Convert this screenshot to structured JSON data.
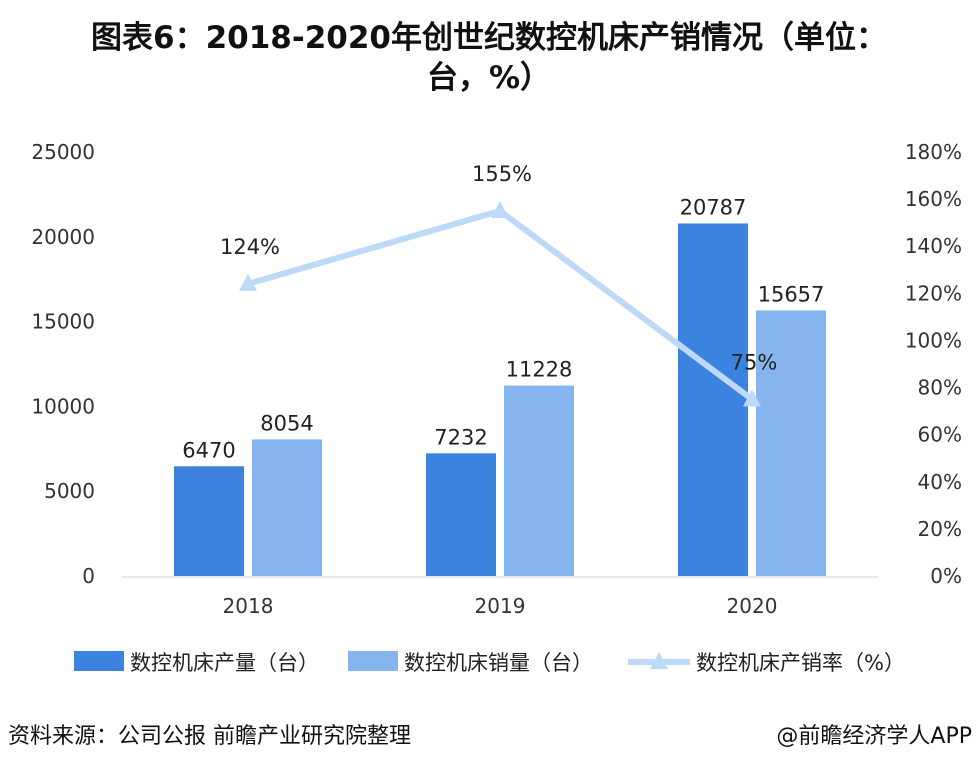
{
  "title_line1": "图表6：2018-2020年创世纪数控机床产销情况（单位：",
  "title_line2": "台，%）",
  "chart_data": {
    "type": "bar",
    "categories": [
      "2018",
      "2019",
      "2020"
    ],
    "series": [
      {
        "name": "数控机床产量（台）",
        "type": "bar",
        "axis": "left",
        "values": [
          6470,
          7232,
          20787
        ],
        "color": "#3c82df"
      },
      {
        "name": "数控机床销量（台）",
        "type": "bar",
        "axis": "left",
        "values": [
          8054,
          11228,
          15657
        ],
        "color": "#86b4ee"
      },
      {
        "name": "数控机床产销率（%）",
        "type": "line",
        "axis": "right",
        "values": [
          124,
          155,
          75
        ],
        "color": "#bcd9f7"
      }
    ],
    "y_left": {
      "min": 0,
      "max": 25000,
      "ticks": [
        "25000",
        "20000",
        "15000",
        "10000",
        "5000",
        "0"
      ]
    },
    "y_right": {
      "min": 0,
      "max": 180,
      "ticks": [
        "180%",
        "160%",
        "140%",
        "120%",
        "100%",
        "80%",
        "60%",
        "40%",
        "20%",
        "0%"
      ]
    },
    "data_labels": {
      "series0": [
        "6470",
        "7232",
        "20787"
      ],
      "series1": [
        "8054",
        "11228",
        "15657"
      ],
      "series2": [
        "124%",
        "155%",
        "75%"
      ]
    },
    "legend_position": "bottom",
    "grid": false
  },
  "footer": {
    "source": "资料来源：公司公报  前瞻产业研究院整理",
    "brand": "@前瞻经济学人APP"
  }
}
